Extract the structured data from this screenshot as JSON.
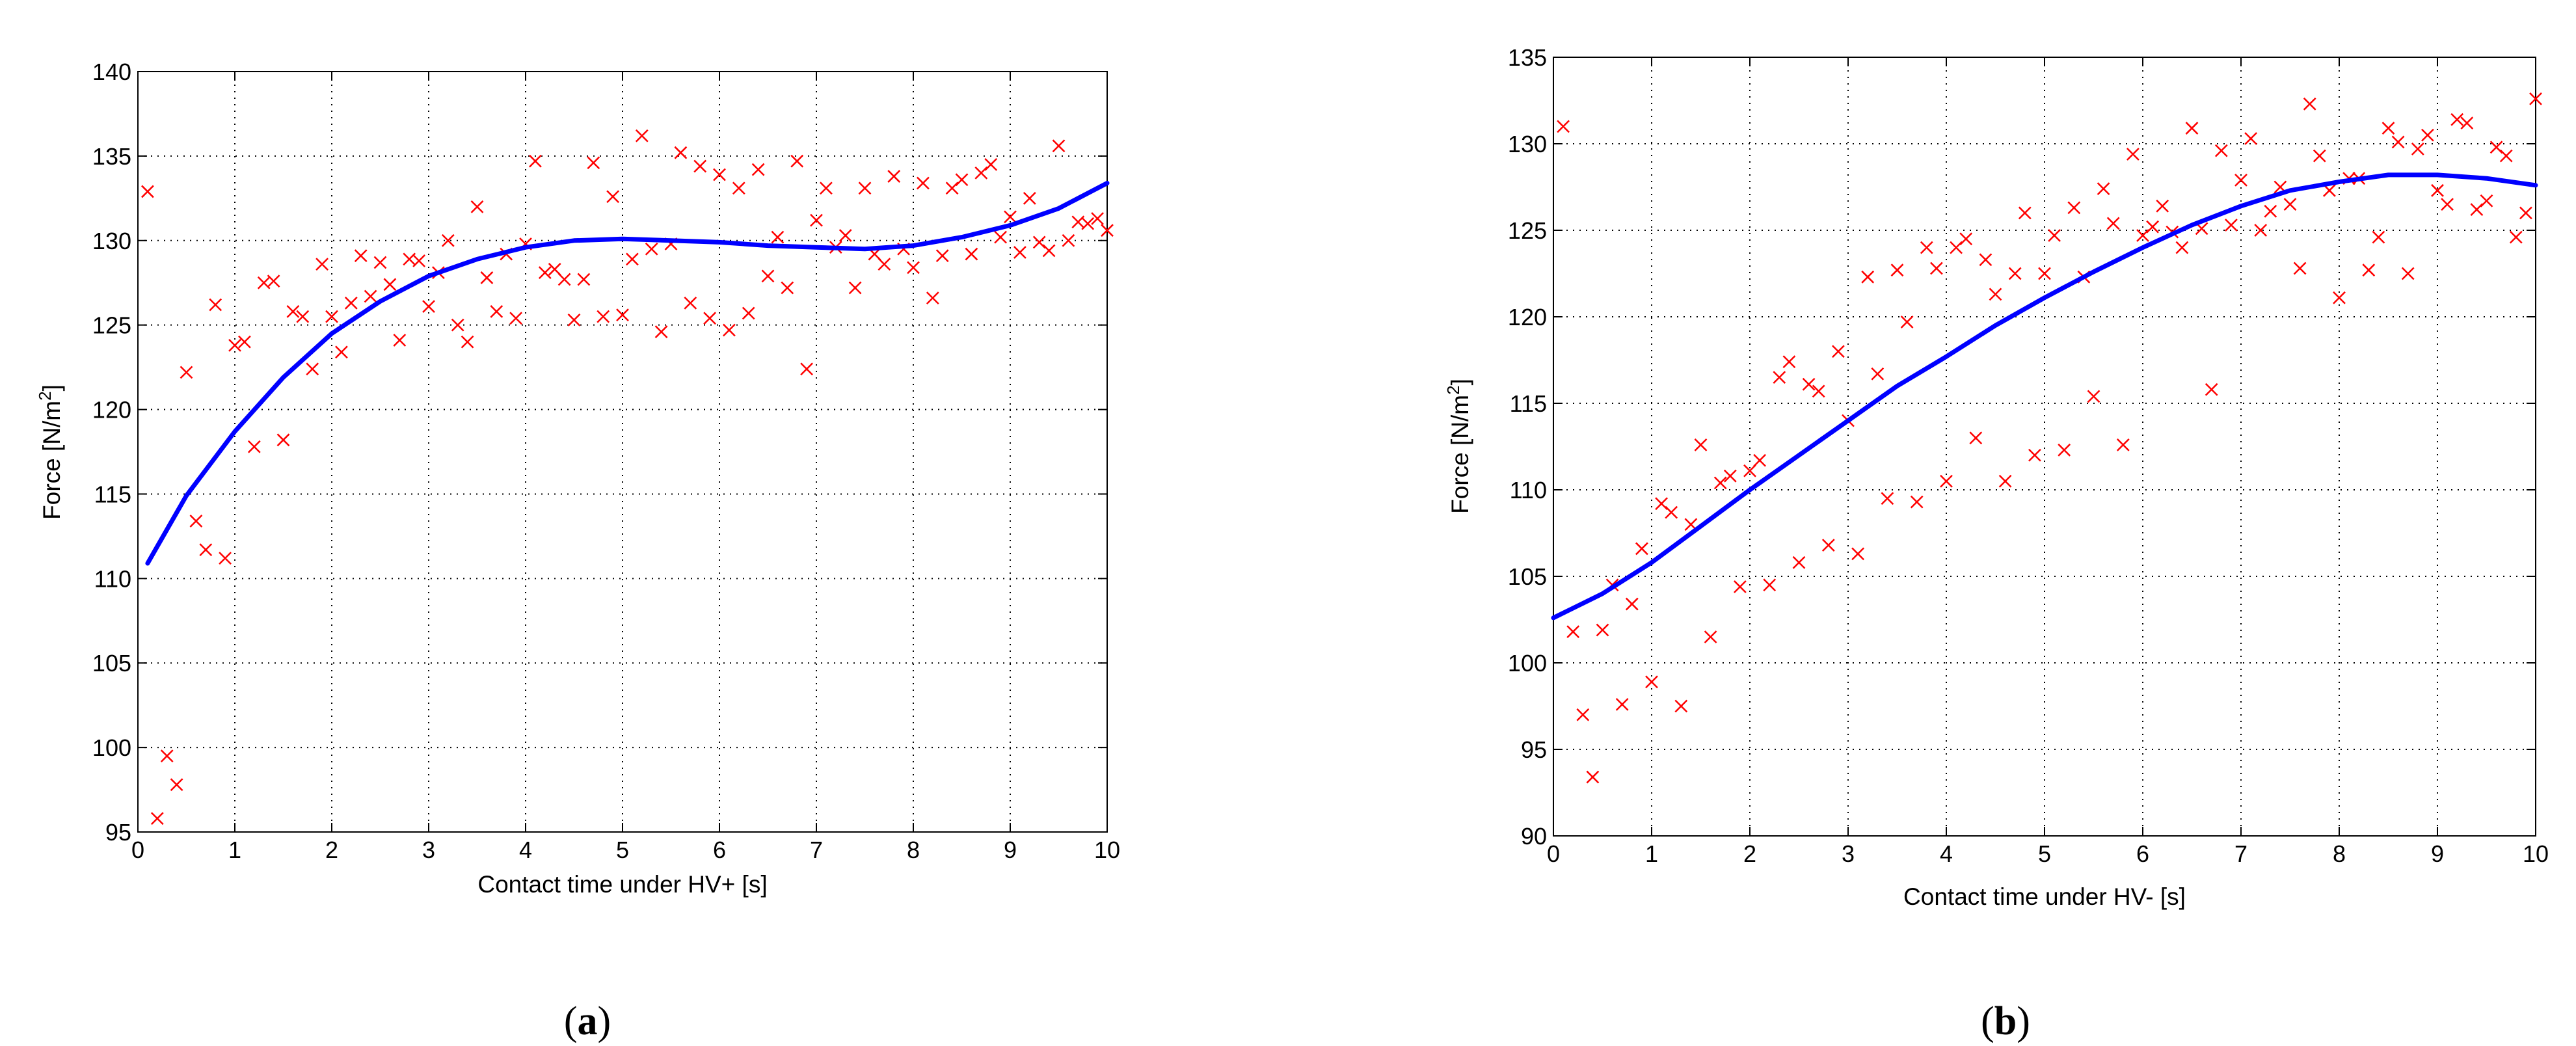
{
  "chart_data": [
    {
      "type": "scatter",
      "caption": "(a)",
      "caption_letter": "a",
      "xlabel": "Contact time under HV+ [s]",
      "ylabel": "Force [N/m²]",
      "xlim": [
        0,
        10
      ],
      "ylim": [
        95,
        140
      ],
      "xticks": [
        "0",
        "1",
        "2",
        "3",
        "4",
        "5",
        "6",
        "7",
        "8",
        "9",
        "10"
      ],
      "yticks": [
        "95",
        "100",
        "105",
        "110",
        "115",
        "120",
        "125",
        "130",
        "135",
        "140"
      ],
      "grid": true,
      "series": [
        {
          "kind": "scatter",
          "marker": "x",
          "color": "#ff0000",
          "points": [
            [
              0.1,
              132.9
            ],
            [
              0.2,
              95.8
            ],
            [
              0.3,
              99.5
            ],
            [
              0.4,
              97.8
            ],
            [
              0.5,
              122.2
            ],
            [
              0.6,
              113.4
            ],
            [
              0.7,
              111.7
            ],
            [
              0.8,
              126.2
            ],
            [
              0.9,
              111.2
            ],
            [
              1.0,
              123.8
            ],
            [
              1.1,
              124.0
            ],
            [
              1.2,
              117.8
            ],
            [
              1.3,
              127.5
            ],
            [
              1.4,
              127.6
            ],
            [
              1.5,
              118.2
            ],
            [
              1.6,
              125.8
            ],
            [
              1.7,
              125.5
            ],
            [
              1.8,
              122.4
            ],
            [
              1.9,
              128.6
            ],
            [
              2.0,
              125.5
            ],
            [
              2.1,
              123.4
            ],
            [
              2.2,
              126.3
            ],
            [
              2.3,
              129.1
            ],
            [
              2.4,
              126.7
            ],
            [
              2.5,
              128.7
            ],
            [
              2.6,
              127.4
            ],
            [
              2.7,
              124.1
            ],
            [
              2.8,
              128.9
            ],
            [
              2.9,
              128.8
            ],
            [
              3.0,
              126.1
            ],
            [
              3.1,
              128.1
            ],
            [
              3.2,
              130.0
            ],
            [
              3.3,
              125.0
            ],
            [
              3.4,
              124.0
            ],
            [
              3.5,
              132.0
            ],
            [
              3.6,
              127.8
            ],
            [
              3.7,
              125.8
            ],
            [
              3.8,
              129.2
            ],
            [
              3.9,
              125.4
            ],
            [
              4.0,
              129.8
            ],
            [
              4.1,
              134.7
            ],
            [
              4.2,
              128.1
            ],
            [
              4.3,
              128.3
            ],
            [
              4.4,
              127.7
            ],
            [
              4.5,
              125.3
            ],
            [
              4.6,
              127.7
            ],
            [
              4.7,
              134.6
            ],
            [
              4.8,
              125.5
            ],
            [
              4.9,
              132.6
            ],
            [
              5.0,
              125.6
            ],
            [
              5.1,
              128.9
            ],
            [
              5.2,
              136.2
            ],
            [
              5.3,
              129.5
            ],
            [
              5.4,
              124.6
            ],
            [
              5.5,
              129.8
            ],
            [
              5.6,
              135.2
            ],
            [
              5.7,
              126.3
            ],
            [
              5.8,
              134.4
            ],
            [
              5.9,
              125.4
            ],
            [
              6.0,
              133.9
            ],
            [
              6.1,
              124.7
            ],
            [
              6.2,
              133.1
            ],
            [
              6.3,
              125.7
            ],
            [
              6.4,
              134.2
            ],
            [
              6.5,
              127.9
            ],
            [
              6.6,
              130.2
            ],
            [
              6.7,
              127.2
            ],
            [
              6.8,
              134.7
            ],
            [
              6.9,
              122.4
            ],
            [
              7.0,
              131.2
            ],
            [
              7.1,
              133.1
            ],
            [
              7.2,
              129.6
            ],
            [
              7.3,
              130.3
            ],
            [
              7.4,
              127.2
            ],
            [
              7.5,
              133.1
            ],
            [
              7.6,
              129.2
            ],
            [
              7.7,
              128.6
            ],
            [
              7.8,
              133.8
            ],
            [
              7.9,
              129.5
            ],
            [
              8.0,
              128.4
            ],
            [
              8.1,
              133.4
            ],
            [
              8.2,
              126.6
            ],
            [
              8.3,
              129.1
            ],
            [
              8.4,
              133.1
            ],
            [
              8.5,
              133.6
            ],
            [
              8.6,
              129.2
            ],
            [
              8.7,
              134.0
            ],
            [
              8.8,
              134.5
            ],
            [
              8.9,
              130.2
            ],
            [
              9.0,
              131.4
            ],
            [
              9.1,
              129.3
            ],
            [
              9.2,
              132.5
            ],
            [
              9.3,
              129.9
            ],
            [
              9.4,
              129.4
            ],
            [
              9.5,
              135.6
            ],
            [
              9.6,
              130.0
            ],
            [
              9.7,
              131.1
            ],
            [
              9.8,
              131.0
            ],
            [
              9.9,
              131.3
            ],
            [
              10.0,
              130.6
            ]
          ]
        },
        {
          "kind": "line",
          "color": "#0000ff",
          "points": [
            [
              0.1,
              110.9
            ],
            [
              0.5,
              114.9
            ],
            [
              1.0,
              118.7
            ],
            [
              1.5,
              121.9
            ],
            [
              2.0,
              124.5
            ],
            [
              2.5,
              126.4
            ],
            [
              3.0,
              127.9
            ],
            [
              3.5,
              128.9
            ],
            [
              4.0,
              129.6
            ],
            [
              4.5,
              130.0
            ],
            [
              5.0,
              130.1
            ],
            [
              5.5,
              130.0
            ],
            [
              6.0,
              129.9
            ],
            [
              6.5,
              129.7
            ],
            [
              7.0,
              129.6
            ],
            [
              7.5,
              129.5
            ],
            [
              8.0,
              129.7
            ],
            [
              8.5,
              130.2
            ],
            [
              9.0,
              130.9
            ],
            [
              9.5,
              131.9
            ],
            [
              10.0,
              133.4
            ]
          ]
        }
      ]
    },
    {
      "type": "scatter",
      "caption": "(b)",
      "caption_letter": "b",
      "xlabel": "Contact time under HV- [s]",
      "ylabel": "Force [N/m²]",
      "xlim": [
        0,
        10
      ],
      "ylim": [
        90,
        135
      ],
      "xticks": [
        "0",
        "1",
        "2",
        "3",
        "4",
        "5",
        "6",
        "7",
        "8",
        "9",
        "10"
      ],
      "yticks": [
        "90",
        "95",
        "100",
        "105",
        "110",
        "115",
        "120",
        "125",
        "130",
        "135"
      ],
      "grid": true,
      "series": [
        {
          "kind": "scatter",
          "marker": "x",
          "color": "#ff0000",
          "points": [
            [
              0.1,
              131.0
            ],
            [
              0.2,
              101.8
            ],
            [
              0.3,
              97.0
            ],
            [
              0.4,
              93.4
            ],
            [
              0.5,
              101.9
            ],
            [
              0.6,
              104.5
            ],
            [
              0.7,
              97.6
            ],
            [
              0.8,
              103.4
            ],
            [
              0.9,
              106.6
            ],
            [
              1.0,
              98.9
            ],
            [
              1.1,
              109.2
            ],
            [
              1.2,
              108.7
            ],
            [
              1.3,
              97.5
            ],
            [
              1.4,
              108.0
            ],
            [
              1.5,
              112.6
            ],
            [
              1.6,
              101.5
            ],
            [
              1.7,
              110.4
            ],
            [
              1.8,
              110.8
            ],
            [
              1.9,
              104.4
            ],
            [
              2.0,
              111.1
            ],
            [
              2.1,
              111.7
            ],
            [
              2.2,
              104.5
            ],
            [
              2.3,
              116.5
            ],
            [
              2.4,
              117.4
            ],
            [
              2.5,
              105.8
            ],
            [
              2.6,
              116.1
            ],
            [
              2.7,
              115.7
            ],
            [
              2.8,
              106.8
            ],
            [
              2.9,
              118.0
            ],
            [
              3.0,
              114.0
            ],
            [
              3.1,
              106.3
            ],
            [
              3.2,
              122.3
            ],
            [
              3.3,
              116.7
            ],
            [
              3.4,
              109.5
            ],
            [
              3.5,
              122.7
            ],
            [
              3.6,
              119.7
            ],
            [
              3.7,
              109.3
            ],
            [
              3.8,
              124.0
            ],
            [
              3.9,
              122.8
            ],
            [
              4.0,
              110.5
            ],
            [
              4.1,
              124.0
            ],
            [
              4.2,
              124.5
            ],
            [
              4.3,
              113.0
            ],
            [
              4.4,
              123.3
            ],
            [
              4.5,
              121.3
            ],
            [
              4.6,
              110.5
            ],
            [
              4.7,
              122.5
            ],
            [
              4.8,
              126.0
            ],
            [
              4.9,
              112.0
            ],
            [
              5.0,
              122.5
            ],
            [
              5.1,
              124.7
            ],
            [
              5.2,
              112.3
            ],
            [
              5.3,
              126.3
            ],
            [
              5.4,
              122.3
            ],
            [
              5.5,
              115.4
            ],
            [
              5.6,
              127.4
            ],
            [
              5.7,
              125.4
            ],
            [
              5.8,
              112.6
            ],
            [
              5.9,
              129.4
            ],
            [
              6.0,
              124.7
            ],
            [
              6.1,
              125.2
            ],
            [
              6.2,
              126.4
            ],
            [
              6.3,
              124.9
            ],
            [
              6.4,
              124.0
            ],
            [
              6.5,
              130.9
            ],
            [
              6.6,
              125.1
            ],
            [
              6.7,
              115.8
            ],
            [
              6.8,
              129.6
            ],
            [
              6.9,
              125.3
            ],
            [
              7.0,
              127.9
            ],
            [
              7.1,
              130.3
            ],
            [
              7.2,
              125.0
            ],
            [
              7.3,
              126.1
            ],
            [
              7.4,
              127.5
            ],
            [
              7.5,
              126.5
            ],
            [
              7.6,
              122.8
            ],
            [
              7.7,
              132.3
            ],
            [
              7.8,
              129.3
            ],
            [
              7.9,
              127.3
            ],
            [
              8.0,
              121.1
            ],
            [
              8.1,
              128.0
            ],
            [
              8.2,
              128.0
            ],
            [
              8.3,
              122.7
            ],
            [
              8.4,
              124.6
            ],
            [
              8.5,
              130.9
            ],
            [
              8.6,
              130.1
            ],
            [
              8.7,
              122.5
            ],
            [
              8.8,
              129.7
            ],
            [
              8.9,
              130.5
            ],
            [
              9.0,
              127.3
            ],
            [
              9.1,
              126.5
            ],
            [
              9.2,
              131.4
            ],
            [
              9.3,
              131.2
            ],
            [
              9.4,
              126.2
            ],
            [
              9.5,
              126.7
            ],
            [
              9.6,
              129.8
            ],
            [
              9.7,
              129.3
            ],
            [
              9.8,
              124.6
            ],
            [
              9.9,
              126.0
            ],
            [
              10.0,
              132.6
            ]
          ]
        },
        {
          "kind": "line",
          "color": "#0000ff",
          "points": [
            [
              0.0,
              102.6
            ],
            [
              0.5,
              104.0
            ],
            [
              1.0,
              105.8
            ],
            [
              1.5,
              107.9
            ],
            [
              2.0,
              110.0
            ],
            [
              2.5,
              112.0
            ],
            [
              3.0,
              114.0
            ],
            [
              3.5,
              116.0
            ],
            [
              4.0,
              117.7
            ],
            [
              4.5,
              119.5
            ],
            [
              5.0,
              121.1
            ],
            [
              5.5,
              122.6
            ],
            [
              6.0,
              124.0
            ],
            [
              6.5,
              125.3
            ],
            [
              7.0,
              126.4
            ],
            [
              7.5,
              127.3
            ],
            [
              8.0,
              127.8
            ],
            [
              8.5,
              128.2
            ],
            [
              9.0,
              128.2
            ],
            [
              9.5,
              128.0
            ],
            [
              10.0,
              127.6
            ]
          ]
        }
      ]
    }
  ]
}
